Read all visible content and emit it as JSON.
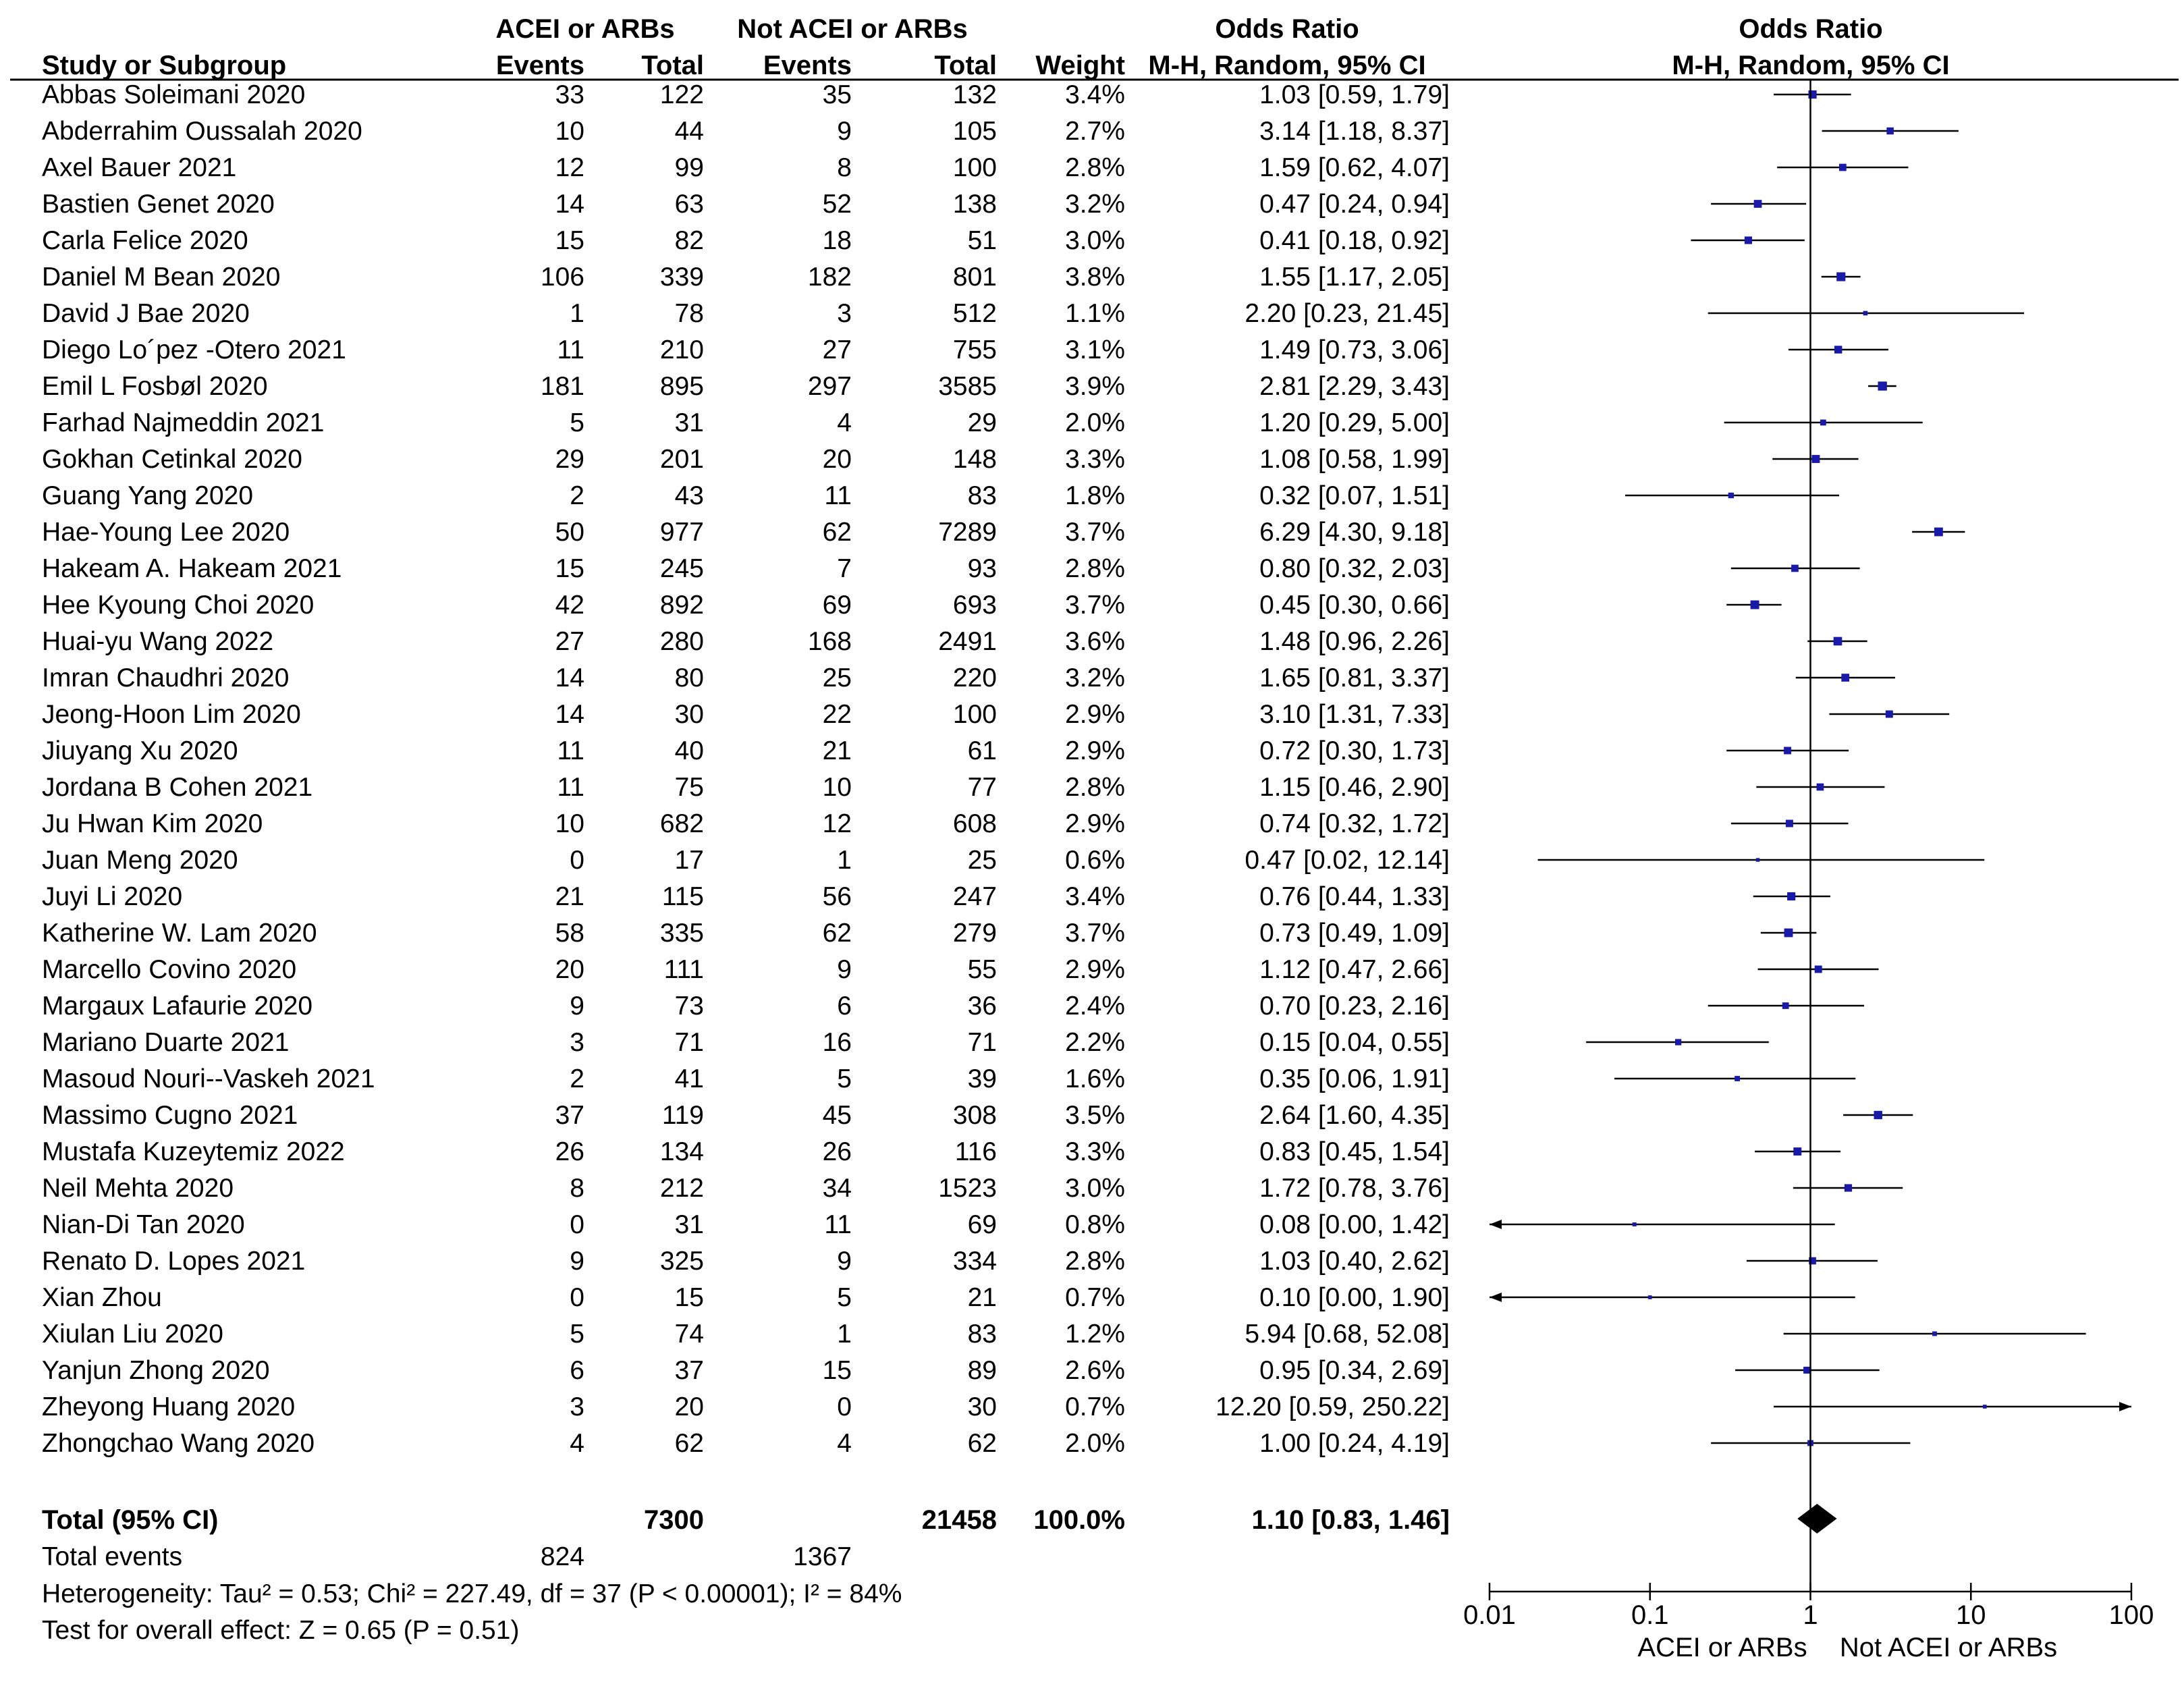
{
  "headers": {
    "group1": "ACEI or ARBs",
    "group2": "Not ACEI or ARBs",
    "odds_ratio_table": "Odds Ratio",
    "odds_ratio_plot": "Odds Ratio",
    "study": "Study or Subgroup",
    "events1": "Events",
    "total1": "Total",
    "events2": "Events",
    "total2": "Total",
    "weight": "Weight",
    "method_table": "M-H, Random, 95% CI",
    "method_plot": "M-H, Random, 95% CI"
  },
  "studies": [
    {
      "name": "Abbas Soleimani 2020",
      "e1": "33",
      "t1": "122",
      "e2": "35",
      "t2": "132",
      "weight": "3.4%",
      "ci_text": "1.03 [0.59, 1.79]",
      "or": 1.03,
      "lo": 0.59,
      "hi": 1.79
    },
    {
      "name": "Abderrahim Oussalah 2020",
      "e1": "10",
      "t1": "44",
      "e2": "9",
      "t2": "105",
      "weight": "2.7%",
      "ci_text": "3.14 [1.18, 8.37]",
      "or": 3.14,
      "lo": 1.18,
      "hi": 8.37
    },
    {
      "name": "Axel Bauer 2021",
      "e1": "12",
      "t1": "99",
      "e2": "8",
      "t2": "100",
      "weight": "2.8%",
      "ci_text": "1.59 [0.62, 4.07]",
      "or": 1.59,
      "lo": 0.62,
      "hi": 4.07
    },
    {
      "name": "Bastien Genet 2020",
      "e1": "14",
      "t1": "63",
      "e2": "52",
      "t2": "138",
      "weight": "3.2%",
      "ci_text": "0.47 [0.24, 0.94]",
      "or": 0.47,
      "lo": 0.24,
      "hi": 0.94
    },
    {
      "name": "Carla Felice 2020",
      "e1": "15",
      "t1": "82",
      "e2": "18",
      "t2": "51",
      "weight": "3.0%",
      "ci_text": "0.41 [0.18, 0.92]",
      "or": 0.41,
      "lo": 0.18,
      "hi": 0.92
    },
    {
      "name": "Daniel M Bean 2020",
      "e1": "106",
      "t1": "339",
      "e2": "182",
      "t2": "801",
      "weight": "3.8%",
      "ci_text": "1.55 [1.17, 2.05]",
      "or": 1.55,
      "lo": 1.17,
      "hi": 2.05
    },
    {
      "name": "David J Bae 2020",
      "e1": "1",
      "t1": "78",
      "e2": "3",
      "t2": "512",
      "weight": "1.1%",
      "ci_text": "2.20 [0.23, 21.45]",
      "or": 2.2,
      "lo": 0.23,
      "hi": 21.45
    },
    {
      "name": "Diego Lo´pez -Otero 2021",
      "e1": "11",
      "t1": "210",
      "e2": "27",
      "t2": "755",
      "weight": "3.1%",
      "ci_text": "1.49 [0.73, 3.06]",
      "or": 1.49,
      "lo": 0.73,
      "hi": 3.06
    },
    {
      "name": "Emil L Fosbøl 2020",
      "e1": "181",
      "t1": "895",
      "e2": "297",
      "t2": "3585",
      "weight": "3.9%",
      "ci_text": "2.81 [2.29, 3.43]",
      "or": 2.81,
      "lo": 2.29,
      "hi": 3.43
    },
    {
      "name": "Farhad Najmeddin 2021",
      "e1": "5",
      "t1": "31",
      "e2": "4",
      "t2": "29",
      "weight": "2.0%",
      "ci_text": "1.20 [0.29, 5.00]",
      "or": 1.2,
      "lo": 0.29,
      "hi": 5.0
    },
    {
      "name": "Gokhan Cetinkal 2020",
      "e1": "29",
      "t1": "201",
      "e2": "20",
      "t2": "148",
      "weight": "3.3%",
      "ci_text": "1.08 [0.58, 1.99]",
      "or": 1.08,
      "lo": 0.58,
      "hi": 1.99
    },
    {
      "name": "Guang Yang 2020",
      "e1": "2",
      "t1": "43",
      "e2": "11",
      "t2": "83",
      "weight": "1.8%",
      "ci_text": "0.32 [0.07, 1.51]",
      "or": 0.32,
      "lo": 0.07,
      "hi": 1.51
    },
    {
      "name": "Hae-Young Lee 2020",
      "e1": "50",
      "t1": "977",
      "e2": "62",
      "t2": "7289",
      "weight": "3.7%",
      "ci_text": "6.29 [4.30, 9.18]",
      "or": 6.29,
      "lo": 4.3,
      "hi": 9.18
    },
    {
      "name": "Hakeam A. Hakeam 2021",
      "e1": "15",
      "t1": "245",
      "e2": "7",
      "t2": "93",
      "weight": "2.8%",
      "ci_text": "0.80 [0.32, 2.03]",
      "or": 0.8,
      "lo": 0.32,
      "hi": 2.03
    },
    {
      "name": "Hee Kyoung Choi 2020",
      "e1": "42",
      "t1": "892",
      "e2": "69",
      "t2": "693",
      "weight": "3.7%",
      "ci_text": "0.45 [0.30, 0.66]",
      "or": 0.45,
      "lo": 0.3,
      "hi": 0.66
    },
    {
      "name": "Huai-yu Wang 2022",
      "e1": "27",
      "t1": "280",
      "e2": "168",
      "t2": "2491",
      "weight": "3.6%",
      "ci_text": "1.48 [0.96, 2.26]",
      "or": 1.48,
      "lo": 0.96,
      "hi": 2.26
    },
    {
      "name": "Imran Chaudhri 2020",
      "e1": "14",
      "t1": "80",
      "e2": "25",
      "t2": "220",
      "weight": "3.2%",
      "ci_text": "1.65 [0.81, 3.37]",
      "or": 1.65,
      "lo": 0.81,
      "hi": 3.37
    },
    {
      "name": "Jeong-Hoon Lim 2020",
      "e1": "14",
      "t1": "30",
      "e2": "22",
      "t2": "100",
      "weight": "2.9%",
      "ci_text": "3.10 [1.31, 7.33]",
      "or": 3.1,
      "lo": 1.31,
      "hi": 7.33
    },
    {
      "name": "Jiuyang Xu 2020",
      "e1": "11",
      "t1": "40",
      "e2": "21",
      "t2": "61",
      "weight": "2.9%",
      "ci_text": "0.72 [0.30, 1.73]",
      "or": 0.72,
      "lo": 0.3,
      "hi": 1.73
    },
    {
      "name": "Jordana B Cohen 2021",
      "e1": "11",
      "t1": "75",
      "e2": "10",
      "t2": "77",
      "weight": "2.8%",
      "ci_text": "1.15 [0.46, 2.90]",
      "or": 1.15,
      "lo": 0.46,
      "hi": 2.9
    },
    {
      "name": "Ju Hwan Kim 2020",
      "e1": "10",
      "t1": "682",
      "e2": "12",
      "t2": "608",
      "weight": "2.9%",
      "ci_text": "0.74 [0.32, 1.72]",
      "or": 0.74,
      "lo": 0.32,
      "hi": 1.72
    },
    {
      "name": "Juan Meng 2020",
      "e1": "0",
      "t1": "17",
      "e2": "1",
      "t2": "25",
      "weight": "0.6%",
      "ci_text": "0.47 [0.02, 12.14]",
      "or": 0.47,
      "lo": 0.02,
      "hi": 12.14
    },
    {
      "name": "Juyi Li 2020",
      "e1": "21",
      "t1": "115",
      "e2": "56",
      "t2": "247",
      "weight": "3.4%",
      "ci_text": "0.76 [0.44, 1.33]",
      "or": 0.76,
      "lo": 0.44,
      "hi": 1.33
    },
    {
      "name": "Katherine W. Lam 2020",
      "e1": "58",
      "t1": "335",
      "e2": "62",
      "t2": "279",
      "weight": "3.7%",
      "ci_text": "0.73 [0.49, 1.09]",
      "or": 0.73,
      "lo": 0.49,
      "hi": 1.09
    },
    {
      "name": "Marcello Covino 2020",
      "e1": "20",
      "t1": "111",
      "e2": "9",
      "t2": "55",
      "weight": "2.9%",
      "ci_text": "1.12 [0.47, 2.66]",
      "or": 1.12,
      "lo": 0.47,
      "hi": 2.66
    },
    {
      "name": "Margaux Lafaurie 2020",
      "e1": "9",
      "t1": "73",
      "e2": "6",
      "t2": "36",
      "weight": "2.4%",
      "ci_text": "0.70 [0.23, 2.16]",
      "or": 0.7,
      "lo": 0.23,
      "hi": 2.16
    },
    {
      "name": "Mariano Duarte 2021",
      "e1": "3",
      "t1": "71",
      "e2": "16",
      "t2": "71",
      "weight": "2.2%",
      "ci_text": "0.15 [0.04, 0.55]",
      "or": 0.15,
      "lo": 0.04,
      "hi": 0.55
    },
    {
      "name": "Masoud Nouri--Vaskeh 2021",
      "e1": "2",
      "t1": "41",
      "e2": "5",
      "t2": "39",
      "weight": "1.6%",
      "ci_text": "0.35 [0.06, 1.91]",
      "or": 0.35,
      "lo": 0.06,
      "hi": 1.91
    },
    {
      "name": "Massimo Cugno 2021",
      "e1": "37",
      "t1": "119",
      "e2": "45",
      "t2": "308",
      "weight": "3.5%",
      "ci_text": "2.64 [1.60, 4.35]",
      "or": 2.64,
      "lo": 1.6,
      "hi": 4.35
    },
    {
      "name": "Mustafa Kuzeytemiz 2022",
      "e1": "26",
      "t1": "134",
      "e2": "26",
      "t2": "116",
      "weight": "3.3%",
      "ci_text": "0.83 [0.45, 1.54]",
      "or": 0.83,
      "lo": 0.45,
      "hi": 1.54
    },
    {
      "name": "Neil Mehta 2020",
      "e1": "8",
      "t1": "212",
      "e2": "34",
      "t2": "1523",
      "weight": "3.0%",
      "ci_text": "1.72 [0.78, 3.76]",
      "or": 1.72,
      "lo": 0.78,
      "hi": 3.76
    },
    {
      "name": "Nian-Di Tan 2020",
      "e1": "0",
      "t1": "31",
      "e2": "11",
      "t2": "69",
      "weight": "0.8%",
      "ci_text": "0.08 [0.00, 1.42]",
      "or": 0.08,
      "lo": 0.0,
      "hi": 1.42
    },
    {
      "name": "Renato D. Lopes 2021",
      "e1": "9",
      "t1": "325",
      "e2": "9",
      "t2": "334",
      "weight": "2.8%",
      "ci_text": "1.03 [0.40, 2.62]",
      "or": 1.03,
      "lo": 0.4,
      "hi": 2.62
    },
    {
      "name": "Xian Zhou",
      "e1": "0",
      "t1": "15",
      "e2": "5",
      "t2": "21",
      "weight": "0.7%",
      "ci_text": "0.10 [0.00, 1.90]",
      "or": 0.1,
      "lo": 0.0,
      "hi": 1.9
    },
    {
      "name": "Xiulan Liu 2020",
      "e1": "5",
      "t1": "74",
      "e2": "1",
      "t2": "83",
      "weight": "1.2%",
      "ci_text": "5.94 [0.68, 52.08]",
      "or": 5.94,
      "lo": 0.68,
      "hi": 52.08
    },
    {
      "name": "Yanjun Zhong 2020",
      "e1": "6",
      "t1": "37",
      "e2": "15",
      "t2": "89",
      "weight": "2.6%",
      "ci_text": "0.95 [0.34, 2.69]",
      "or": 0.95,
      "lo": 0.34,
      "hi": 2.69
    },
    {
      "name": "Zheyong Huang 2020",
      "e1": "3",
      "t1": "20",
      "e2": "0",
      "t2": "30",
      "weight": "0.7%",
      "ci_text": "12.20 [0.59, 250.22]",
      "or": 12.2,
      "lo": 0.59,
      "hi": 250.22
    },
    {
      "name": "Zhongchao Wang 2020",
      "e1": "4",
      "t1": "62",
      "e2": "4",
      "t2": "62",
      "weight": "2.0%",
      "ci_text": "1.00 [0.24, 4.19]",
      "or": 1.0,
      "lo": 0.24,
      "hi": 4.19
    }
  ],
  "total": {
    "label": "Total (95% CI)",
    "t1": "7300",
    "t2": "21458",
    "weight": "100.0%",
    "ci_text": "1.10 [0.83, 1.46]",
    "or": 1.1,
    "lo": 0.83,
    "hi": 1.46
  },
  "total_events": {
    "label": "Total events",
    "e1": "824",
    "e2": "1367"
  },
  "heterogeneity": "Heterogeneity: Tau² = 0.53; Chi² = 227.49, df = 37 (P < 0.00001); I² = 84%",
  "overall_effect": "Test for overall effect: Z = 0.65 (P = 0.51)",
  "axis": {
    "ticks": [
      0.01,
      0.1,
      1,
      10,
      100
    ],
    "tick_labels": [
      "0.01",
      "0.1",
      "1",
      "10",
      "100"
    ],
    "left_label": "ACEI or ARBs",
    "right_label": "Not ACEI or ARBs",
    "xlim": [
      0.01,
      100
    ]
  },
  "colors": {
    "marker": "#1a1aa8",
    "line": "#000000"
  },
  "chart_data": {
    "type": "forest",
    "title": "Odds Ratio M-H, Random, 95% CI",
    "xscale": "log",
    "xlim": [
      0.01,
      100
    ],
    "reference_line": 1,
    "xlabel_left": "ACEI or ARBs",
    "xlabel_right": "Not ACEI or ARBs"
  }
}
